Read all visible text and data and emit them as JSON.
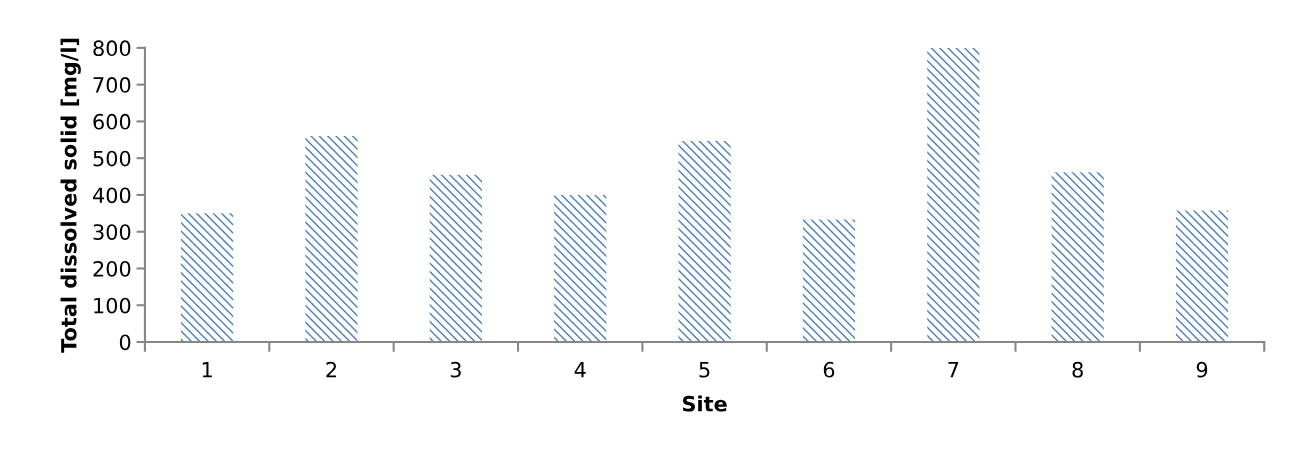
{
  "chart_data": {
    "type": "bar",
    "xlabel": "Site",
    "ylabel": "Total dissolved solid [mg/l]",
    "categories": [
      "1",
      "2",
      "3",
      "4",
      "5",
      "6",
      "7",
      "8",
      "9"
    ],
    "values": [
      350,
      560,
      455,
      400,
      547,
      333,
      800,
      462,
      358
    ],
    "color": "#4a7ebb",
    "ylim": [
      0,
      800
    ],
    "yticks": [
      0,
      100,
      200,
      300,
      400,
      500,
      600,
      700,
      800
    ],
    "grid": false,
    "legend": false
  }
}
